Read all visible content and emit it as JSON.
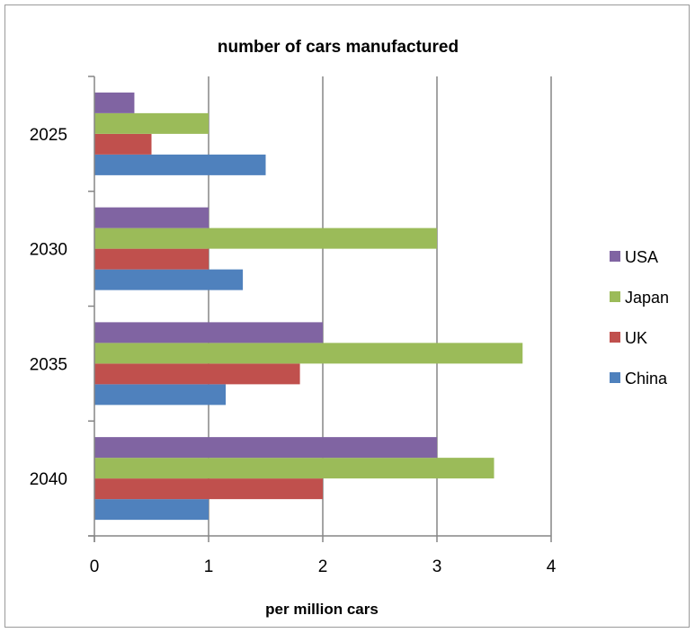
{
  "chart_data": {
    "type": "bar",
    "orientation": "horizontal",
    "title": "number of cars manufactured",
    "xlabel": "per million cars",
    "ylabel": "",
    "categories": [
      "2025",
      "2030",
      "2035",
      "2040"
    ],
    "series": [
      {
        "name": "China",
        "color": "#4F81BD",
        "values": [
          1.5,
          1.3,
          1.15,
          1.0
        ]
      },
      {
        "name": "UK",
        "color": "#C0504D",
        "values": [
          0.5,
          1.0,
          1.8,
          2.0
        ]
      },
      {
        "name": "Japan",
        "color": "#9BBB59",
        "values": [
          1.0,
          3.0,
          3.75,
          3.5
        ]
      },
      {
        "name": "USA",
        "color": "#8064A2",
        "values": [
          0.35,
          1.0,
          2.0,
          3.0
        ]
      }
    ],
    "xlim": [
      0,
      4
    ],
    "xticks": [
      "0",
      "1",
      "2",
      "3",
      "4"
    ],
    "grid": "vertical",
    "legend": "right"
  }
}
